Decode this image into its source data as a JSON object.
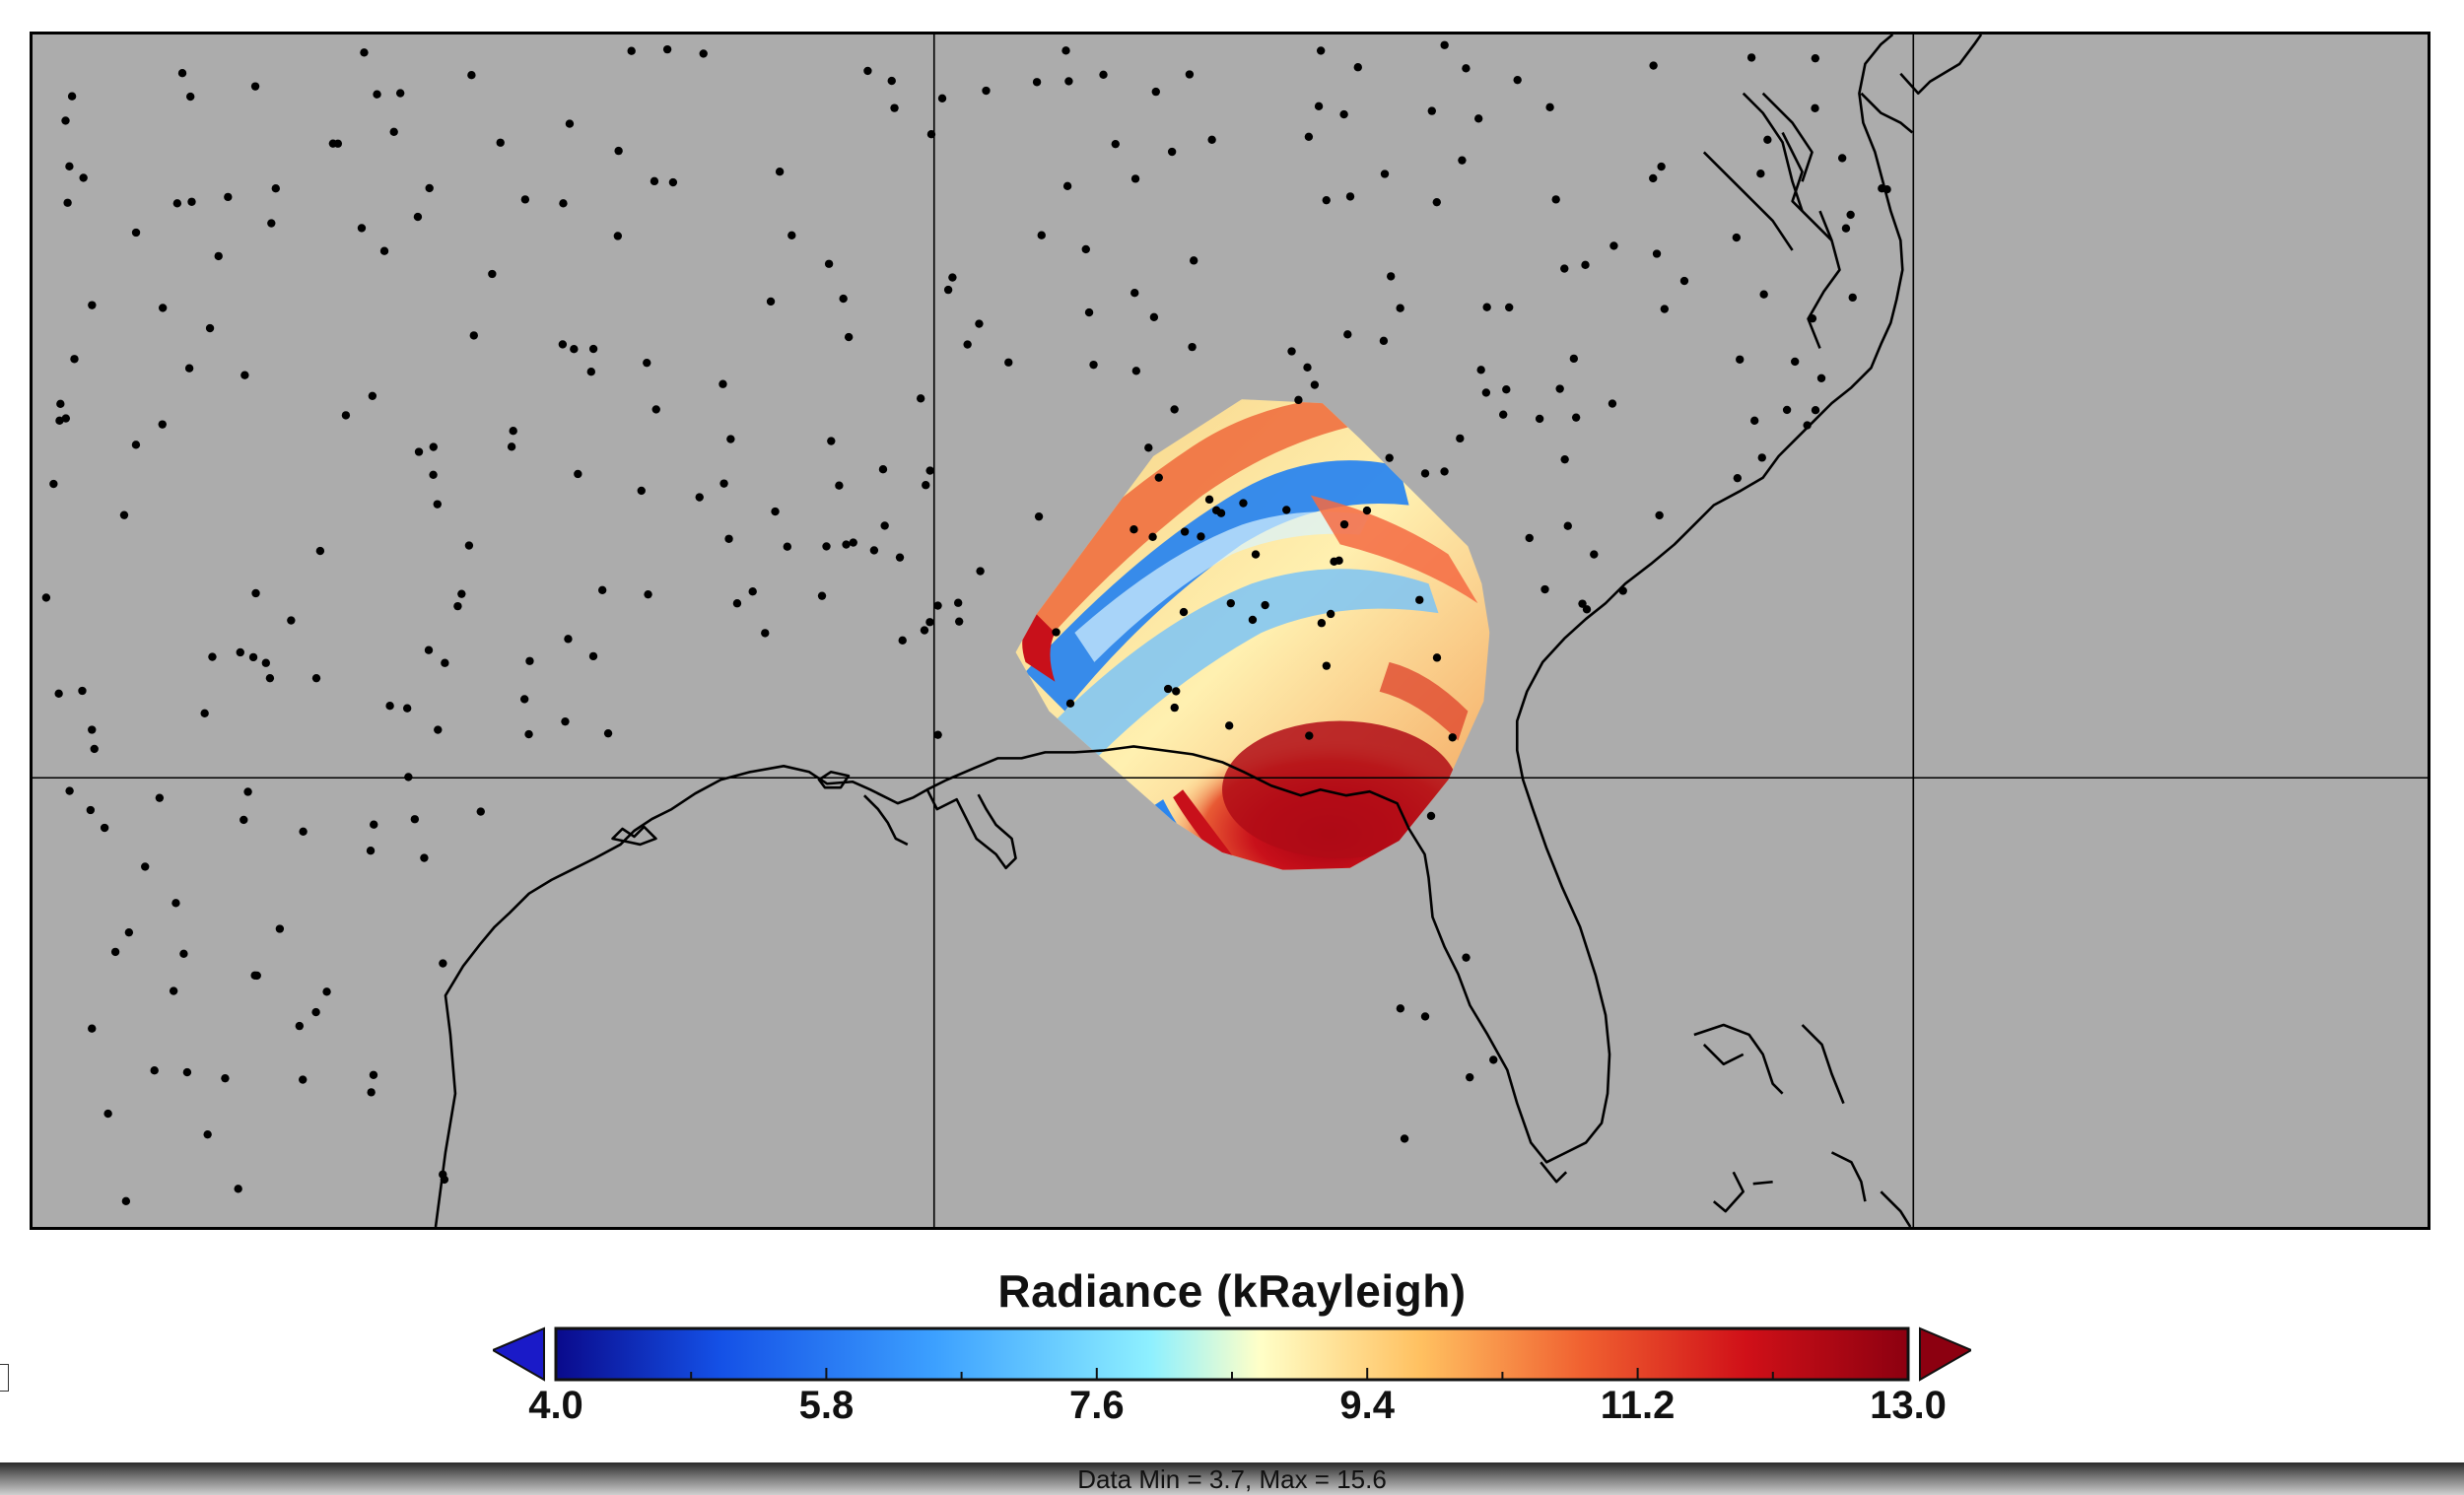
{
  "colorbar": {
    "title": "Radiance (kRayleigh)",
    "ticks": [
      "4.0",
      "5.8",
      "7.6",
      "9.4",
      "11.2",
      "13.0"
    ],
    "tick_values": [
      4.0,
      5.8,
      7.6,
      9.4,
      11.2,
      13.0
    ],
    "range": [
      4.0,
      13.0
    ],
    "extend": "both",
    "colormap": [
      "#0a0a8c",
      "#1450e6",
      "#3ca0ff",
      "#8ef0ff",
      "#ffffc8",
      "#ffc060",
      "#f06030",
      "#d01018",
      "#8c0010"
    ]
  },
  "footer": {
    "text": "Data Min = 3.7, Max = 15.6",
    "data_min": 3.7,
    "data_max": 15.6
  },
  "map": {
    "background_color": "#acacac",
    "features": [
      "coastline",
      "gridlines",
      "station-dots",
      "radiance-swath"
    ]
  }
}
